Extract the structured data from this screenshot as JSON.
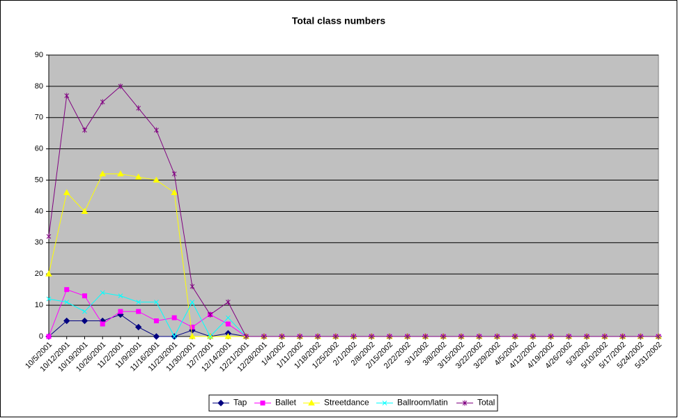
{
  "chart_data": {
    "type": "line",
    "title": "Total class numbers",
    "categories": [
      "10/5/2001",
      "10/12/2001",
      "10/19/2001",
      "10/26/2001",
      "11/2/2001",
      "11/9/2001",
      "11/16/2001",
      "11/23/2001",
      "11/30/2001",
      "12/7/2001",
      "12/14/2001",
      "12/21/2001",
      "12/28/2001",
      "1/4/2002",
      "1/11/2002",
      "1/18/2002",
      "1/25/2002",
      "2/1/2002",
      "2/8/2002",
      "2/15/2002",
      "2/22/2002",
      "3/1/2002",
      "3/8/2002",
      "3/15/2002",
      "3/22/2002",
      "3/29/2002",
      "4/5/2002",
      "4/12/2002",
      "4/19/2002",
      "4/26/2002",
      "5/3/2002",
      "5/10/2002",
      "5/17/2002",
      "5/24/2002",
      "5/31/2002"
    ],
    "series": [
      {
        "name": "Tap",
        "color": "#000080",
        "values": [
          0,
          5,
          5,
          5,
          7,
          3,
          0,
          0,
          2,
          0,
          1,
          0,
          0,
          0,
          0,
          0,
          0,
          0,
          0,
          0,
          0,
          0,
          0,
          0,
          0,
          0,
          0,
          0,
          0,
          0,
          0,
          0,
          0,
          0,
          0
        ]
      },
      {
        "name": "Ballet",
        "color": "#ff00ff",
        "values": [
          0,
          15,
          13,
          4,
          8,
          8,
          5,
          6,
          3,
          7,
          4,
          0,
          0,
          0,
          0,
          0,
          0,
          0,
          0,
          0,
          0,
          0,
          0,
          0,
          0,
          0,
          0,
          0,
          0,
          0,
          0,
          0,
          0,
          0,
          0
        ]
      },
      {
        "name": "Streetdance",
        "color": "#ffff00",
        "values": [
          20,
          46,
          40,
          52,
          52,
          51,
          50,
          46,
          0,
          0,
          0,
          0,
          0,
          0,
          0,
          0,
          0,
          0,
          0,
          0,
          0,
          0,
          0,
          0,
          0,
          0,
          0,
          0,
          0,
          0,
          0,
          0,
          0,
          0,
          0
        ]
      },
      {
        "name": "Ballroom/latin",
        "color": "#00ffff",
        "values": [
          12,
          11,
          8,
          14,
          13,
          11,
          11,
          0,
          11,
          0,
          6,
          0,
          0,
          0,
          0,
          0,
          0,
          0,
          0,
          0,
          0,
          0,
          0,
          0,
          0,
          0,
          0,
          0,
          0,
          0,
          0,
          0,
          0,
          0,
          0
        ]
      },
      {
        "name": "Total",
        "color": "#800080",
        "values": [
          32,
          77,
          66,
          75,
          80,
          73,
          66,
          52,
          16,
          7,
          11,
          0,
          0,
          0,
          0,
          0,
          0,
          0,
          0,
          0,
          0,
          0,
          0,
          0,
          0,
          0,
          0,
          0,
          0,
          0,
          0,
          0,
          0,
          0,
          0
        ]
      }
    ],
    "ylim": [
      0,
      90
    ],
    "yticks": [
      0,
      10,
      20,
      30,
      40,
      50,
      60,
      70,
      80,
      90
    ],
    "grid": true,
    "legend": "bottom"
  }
}
